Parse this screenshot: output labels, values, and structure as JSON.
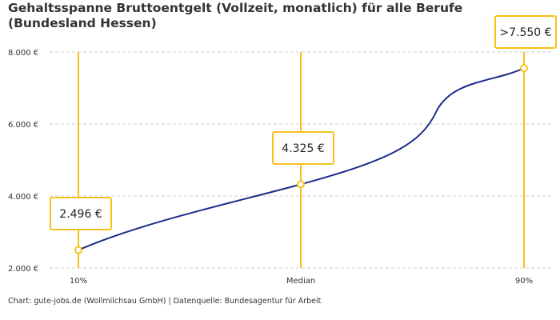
{
  "chart_data": {
    "type": "line",
    "title": "Gehaltsspanne Bruttoentgelt (Vollzeit, monatlich) für alle Berufe (Bundesland Hessen)",
    "categories": [
      "10%",
      "Median",
      "90%"
    ],
    "values": [
      2496,
      4325,
      7550
    ],
    "data_labels": [
      "2.496 €",
      "4.325 €",
      ">7.550 €"
    ],
    "yticks": [
      2000,
      4000,
      6000,
      8000
    ],
    "ytick_labels": [
      "2.000 €",
      "4.000 €",
      "6.000 €",
      "8.000 €"
    ],
    "ylim": [
      2000,
      8000
    ],
    "grid": true,
    "colors": {
      "line": "#1b2a8c",
      "marker": "#f5c21b"
    }
  },
  "footer": "Chart: gute-jobs.de (Wollmilchsau GmbH) | Datenquelle: Bundesagentur für Arbeit"
}
